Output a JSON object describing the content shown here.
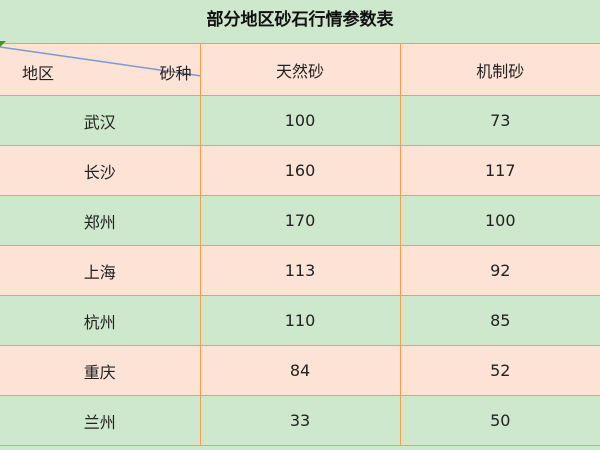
{
  "title": "部分地区砂石行情参数表",
  "header": {
    "region_label": "地区",
    "type_label": "砂种",
    "col1": "天然砂",
    "col2": "机制砂"
  },
  "rows": [
    {
      "region": "武汉",
      "natural": "100",
      "machine": "73"
    },
    {
      "region": "长沙",
      "natural": "160",
      "machine": "117"
    },
    {
      "region": "郑州",
      "natural": "170",
      "machine": "100"
    },
    {
      "region": "上海",
      "natural": "113",
      "machine": "92"
    },
    {
      "region": "杭州",
      "natural": "110",
      "machine": "85"
    },
    {
      "region": "重庆",
      "natural": "84",
      "machine": "52"
    },
    {
      "region": "兰州",
      "natural": "33",
      "machine": "50"
    }
  ],
  "colors": {
    "green": "#cde8cc",
    "pink": "#fde3d6",
    "border": "#f0a050"
  }
}
